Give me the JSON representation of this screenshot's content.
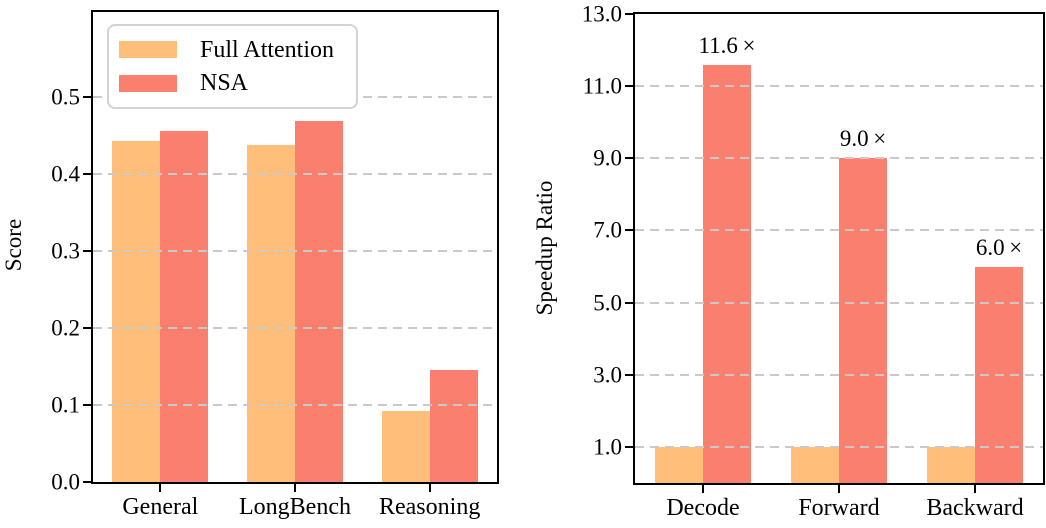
{
  "colors": {
    "full_attention": "#FFBE7A",
    "nsa": "#FA7F6F",
    "gridline": "#C9C9C9",
    "axis": "#000000",
    "legend_border": "#D3D3D3",
    "text": "#000000"
  },
  "legend": {
    "location": "upper left",
    "items": [
      {
        "label": "Full Attention",
        "color_key": "full_attention"
      },
      {
        "label": "NSA",
        "color_key": "nsa"
      }
    ]
  },
  "chart_data": [
    {
      "id": "score",
      "type": "bar",
      "title": "",
      "xlabel": "",
      "ylabel": "Score",
      "categories": [
        "General",
        "LongBench",
        "Reasoning"
      ],
      "series": [
        {
          "name": "Full Attention",
          "values": [
            0.443,
            0.437,
            0.092
          ]
        },
        {
          "name": "NSA",
          "values": [
            0.456,
            0.469,
            0.146
          ]
        }
      ],
      "ylim": [
        0,
        0.61
      ],
      "yticks": [
        0.0,
        0.1,
        0.2,
        0.3,
        0.4,
        0.5
      ],
      "ytick_labels": [
        "0.0",
        "0.1",
        "0.2",
        "0.3",
        "0.4",
        "0.5"
      ],
      "grid": "horizontal dashed, drawn over bars",
      "legend_position": "upper left"
    },
    {
      "id": "speedup",
      "type": "bar",
      "title": "",
      "xlabel": "",
      "ylabel": "Speedup Ratio",
      "categories": [
        "Decode",
        "Forward",
        "Backward"
      ],
      "series": [
        {
          "name": "Full Attention",
          "values": [
            1.0,
            1.0,
            1.0
          ]
        },
        {
          "name": "NSA",
          "values": [
            11.6,
            9.0,
            6.0
          ]
        }
      ],
      "annotations": [
        {
          "category": "Decode",
          "series": "NSA",
          "text": "11.6 ×"
        },
        {
          "category": "Forward",
          "series": "NSA",
          "text": "9.0 ×"
        },
        {
          "category": "Backward",
          "series": "NSA",
          "text": "6.0 ×"
        }
      ],
      "ylim": [
        0,
        13
      ],
      "yticks": [
        1,
        3,
        5,
        7,
        9,
        11,
        13
      ],
      "ytick_labels": [
        "1.0",
        "3.0",
        "5.0",
        "7.0",
        "9.0",
        "11.0",
        "13.0"
      ],
      "grid": "horizontal dashed, drawn over bars",
      "legend_position": "none"
    }
  ]
}
